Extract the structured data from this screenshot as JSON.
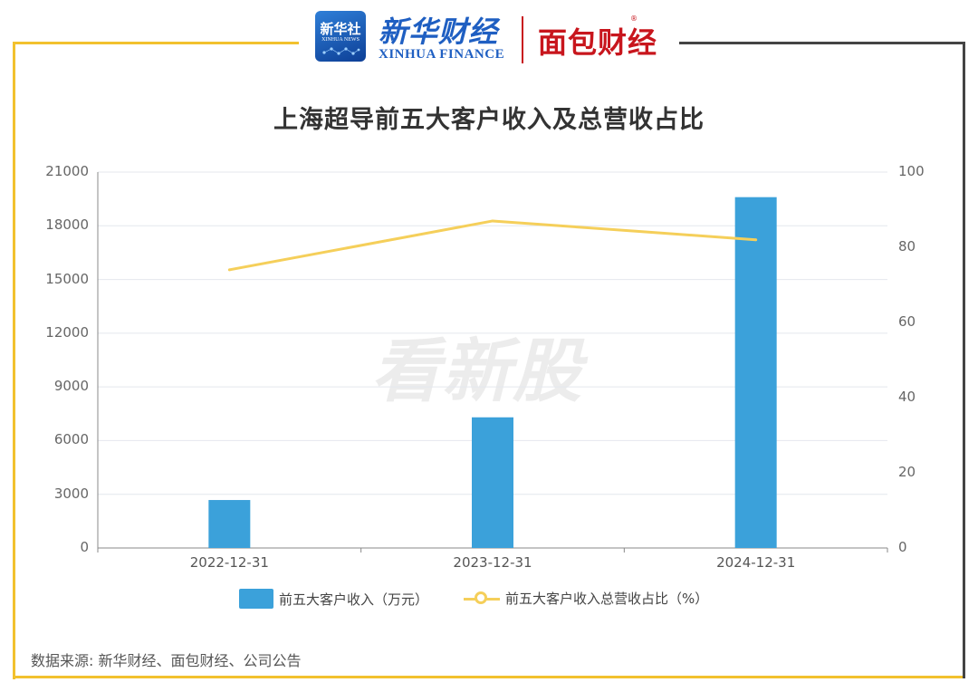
{
  "header": {
    "logo_xinhuashe": "新华社",
    "logo_xinhuashe_sub": "XINHUA NEWS",
    "brand_cn": "新华财经",
    "brand_en": "XINHUA FINANCE",
    "brand_mianbao": "面包财经",
    "reg_mark": "®"
  },
  "watermark": "看新股",
  "chart_data": {
    "type": "bar",
    "title": "上海超导前五大客户收入及总营收占比",
    "categories": [
      "2022-12-31",
      "2023-12-31",
      "2024-12-31"
    ],
    "series": [
      {
        "name": "前五大客户收入（万元）",
        "type": "bar",
        "axis": "left",
        "values": [
          2680,
          7300,
          19600
        ]
      },
      {
        "name": "前五大客户收入总营收占比（%）",
        "type": "line",
        "axis": "right",
        "values": [
          74,
          87,
          82
        ]
      }
    ],
    "y_left": {
      "ticks": [
        "21000",
        "18000",
        "15000",
        "12000",
        "9000",
        "6000",
        "3000",
        "0"
      ],
      "ylim": [
        0,
        21000
      ]
    },
    "y_right": {
      "ticks": [
        "100",
        "80",
        "60",
        "40",
        "20",
        "0"
      ],
      "ylim": [
        0,
        100
      ]
    },
    "grid": true,
    "legend_position": "bottom",
    "colors": {
      "bar": "#3ba1da",
      "line": "#f5cf5a"
    }
  },
  "source": "数据来源: 新华财经、面包财经、公司公告"
}
